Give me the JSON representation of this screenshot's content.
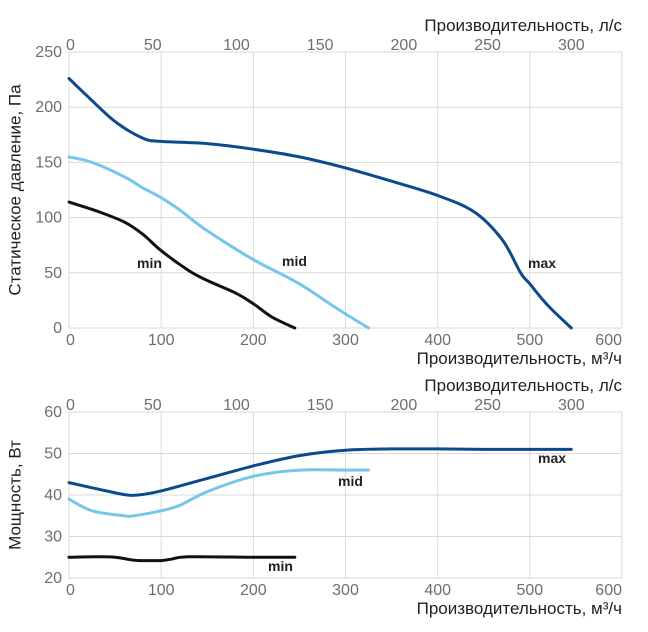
{
  "chart_data": [
    {
      "type": "line",
      "ylabel": "Статическое давление, Па",
      "xlabel_bottom": "Производительность, м³/ч",
      "xlabel_top": "Производительность, л/с",
      "xlim": [
        0,
        600
      ],
      "ylim": [
        0,
        250
      ],
      "x_ticks": [
        0,
        100,
        200,
        300,
        400,
        500,
        600
      ],
      "y_ticks": [
        0,
        50,
        100,
        150,
        200,
        250
      ],
      "top_ticks": [
        0,
        50,
        100,
        150,
        200,
        250,
        300
      ],
      "series": [
        {
          "name": "max",
          "color": "#0d4a8c",
          "x": [
            0,
            20,
            50,
            80,
            100,
            150,
            200,
            250,
            300,
            350,
            400,
            440,
            470,
            490,
            500,
            520,
            545
          ],
          "y": [
            226,
            210,
            187,
            172,
            169,
            167,
            162,
            155,
            145,
            133,
            120,
            105,
            80,
            50,
            40,
            20,
            0
          ]
        },
        {
          "name": "mid",
          "color": "#74c7ea",
          "x": [
            0,
            25,
            60,
            80,
            100,
            120,
            150,
            200,
            250,
            290,
            325
          ],
          "y": [
            155,
            150,
            137,
            127,
            118,
            107,
            88,
            62,
            40,
            18,
            0
          ]
        },
        {
          "name": "min",
          "color": "#111111",
          "x": [
            0,
            30,
            60,
            80,
            100,
            130,
            150,
            180,
            200,
            220,
            245
          ],
          "y": [
            114,
            106,
            96,
            85,
            70,
            52,
            43,
            32,
            22,
            10,
            0
          ]
        }
      ]
    },
    {
      "type": "line",
      "ylabel": "Мощность, Вт",
      "xlabel_bottom": "Производительность, м³/ч",
      "xlabel_top": "Производительность, л/с",
      "xlim": [
        0,
        600
      ],
      "ylim": [
        20,
        60
      ],
      "x_ticks": [
        0,
        100,
        200,
        300,
        400,
        500,
        600
      ],
      "y_ticks": [
        20,
        30,
        40,
        50,
        60
      ],
      "top_ticks": [
        0,
        50,
        100,
        150,
        200,
        250,
        300
      ],
      "series": [
        {
          "name": "max",
          "color": "#0d4a8c",
          "x": [
            0,
            30,
            60,
            75,
            100,
            150,
            200,
            250,
            300,
            350,
            400,
            450,
            500,
            545
          ],
          "y": [
            43,
            41.5,
            40.1,
            40,
            41,
            44,
            47,
            49.5,
            50.8,
            51.1,
            51.1,
            51,
            51,
            51
          ]
        },
        {
          "name": "mid",
          "color": "#74c7ea",
          "x": [
            0,
            25,
            60,
            70,
            100,
            120,
            150,
            200,
            250,
            300,
            325
          ],
          "y": [
            39,
            36.2,
            35,
            35,
            36.2,
            37.5,
            40.8,
            44.5,
            46,
            46,
            46
          ]
        },
        {
          "name": "min",
          "color": "#111111",
          "x": [
            0,
            30,
            50,
            70,
            80,
            100,
            110,
            130,
            200,
            245
          ],
          "y": [
            25,
            25.1,
            25,
            24.3,
            24.2,
            24.2,
            24.5,
            25.1,
            25,
            25
          ]
        }
      ]
    }
  ]
}
